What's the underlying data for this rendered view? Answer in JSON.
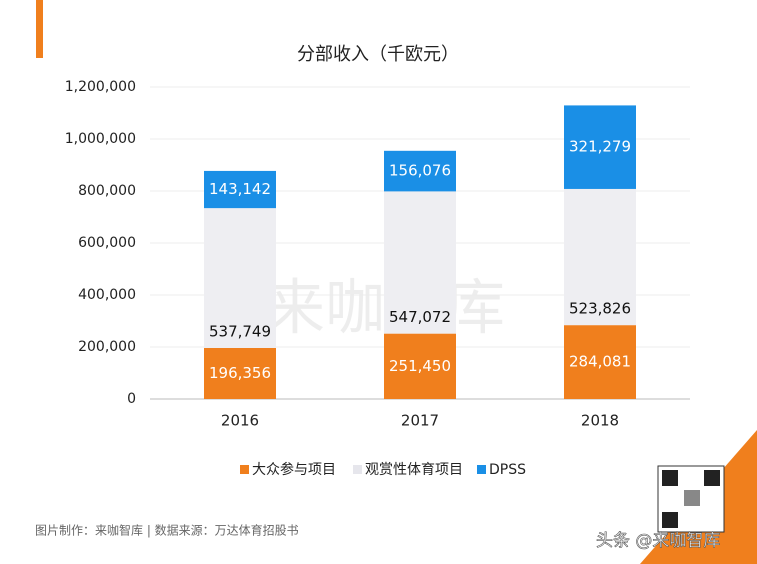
{
  "chart_data": {
    "type": "stacked_bar",
    "title": "分部收入（千欧元）",
    "categories": [
      "2016",
      "2017",
      "2018"
    ],
    "series": [
      {
        "name": "大众参与项目",
        "color": "#f07f1d",
        "values": [
          196356,
          251450,
          284081
        ],
        "value_labels": [
          "196,356",
          "251,450",
          "284,081"
        ]
      },
      {
        "name": "观赏性体育项目",
        "color": "#eeeef2",
        "values": [
          537749,
          547072,
          523826
        ],
        "value_labels": [
          "537,749",
          "547,072",
          "523,826"
        ]
      },
      {
        "name": "DPSS",
        "color": "#1a8fe6",
        "values": [
          143142,
          156076,
          321279
        ],
        "value_labels": [
          "143,142",
          "156,076",
          "321,279"
        ]
      }
    ],
    "ylim": [
      0,
      1200000
    ],
    "yticks": [
      0,
      {
        "value": 200000,
        "label": "200,000"
      },
      {
        "value": 400000,
        "label": "400,000"
      },
      {
        "value": 600000,
        "label": "600,000"
      },
      {
        "value": 800000,
        "label": "800,000"
      },
      {
        "value": 1000000,
        "label": "1,000,000"
      },
      {
        "value": 1200000,
        "label": "1,200,000"
      }
    ],
    "grid": true,
    "legend": "bottom",
    "watermark": "来咖智库",
    "source": "图片制作：来咖智库 | 数据来源：万达体育招股书",
    "credit": "头条 @来咖智库"
  }
}
